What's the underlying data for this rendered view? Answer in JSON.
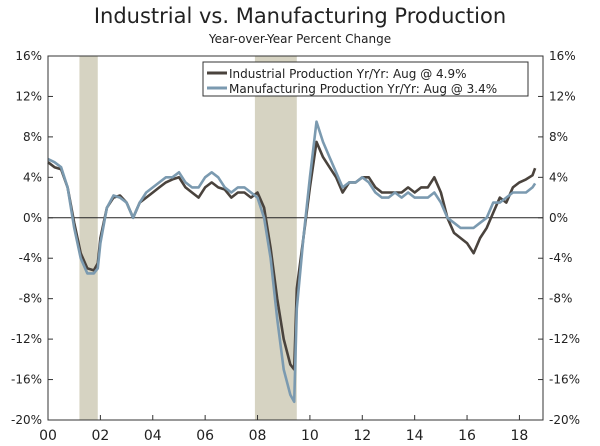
{
  "chart_data": {
    "type": "line",
    "title": "Industrial vs. Manufacturing Production",
    "subtitle": "Year-over-Year Percent Change",
    "xlabel": "",
    "ylabel": "",
    "xlim": [
      2000,
      2018.9
    ],
    "ylim": [
      -20,
      16
    ],
    "y_ticks": [
      16,
      12,
      8,
      4,
      0,
      -4,
      -8,
      -12,
      -16,
      -20
    ],
    "y_tick_labels": [
      "16%",
      "12%",
      "8%",
      "4%",
      "0%",
      "-4%",
      "-8%",
      "-12%",
      "-16%",
      "-20%"
    ],
    "x_ticks": [
      2000,
      2002,
      2004,
      2006,
      2008,
      2010,
      2012,
      2014,
      2016,
      2018
    ],
    "x_tick_labels": [
      "00",
      "02",
      "04",
      "06",
      "08",
      "10",
      "12",
      "14",
      "16",
      "18"
    ],
    "recessions": [
      [
        2001.2,
        2001.9
      ],
      [
        2007.9,
        2009.5
      ]
    ],
    "legend": {
      "placement": "top-right",
      "entries": [
        "Industrial Production Yr/Yr: Aug @ 4.9%",
        "Manufacturing Production Yr/Yr: Aug @ 3.4%"
      ]
    },
    "series": [
      {
        "name": "Industrial Production Yr/Yr: Aug @ 4.9%",
        "color": "#4a433d",
        "x": [
          2000.0,
          2000.25,
          2000.5,
          2000.75,
          2001.0,
          2001.25,
          2001.5,
          2001.75,
          2001.9,
          2002.0,
          2002.25,
          2002.5,
          2002.75,
          2003.0,
          2003.25,
          2003.5,
          2003.75,
          2004.0,
          2004.25,
          2004.5,
          2004.75,
          2005.0,
          2005.25,
          2005.5,
          2005.75,
          2006.0,
          2006.25,
          2006.5,
          2006.75,
          2007.0,
          2007.25,
          2007.5,
          2007.75,
          2008.0,
          2008.25,
          2008.5,
          2008.75,
          2009.0,
          2009.25,
          2009.4,
          2009.5,
          2009.75,
          2010.0,
          2010.25,
          2010.5,
          2010.75,
          2011.0,
          2011.25,
          2011.5,
          2011.75,
          2012.0,
          2012.25,
          2012.5,
          2012.75,
          2013.0,
          2013.25,
          2013.5,
          2013.75,
          2014.0,
          2014.25,
          2014.5,
          2014.75,
          2015.0,
          2015.25,
          2015.5,
          2015.75,
          2016.0,
          2016.25,
          2016.5,
          2016.75,
          2017.0,
          2017.25,
          2017.5,
          2017.75,
          2018.0,
          2018.25,
          2018.5,
          2018.6
        ],
        "values": [
          5.5,
          5.0,
          4.8,
          3.0,
          -0.5,
          -3.5,
          -5.0,
          -5.2,
          -4.5,
          -2.0,
          1.0,
          2.0,
          2.2,
          1.5,
          0.0,
          1.5,
          2.0,
          2.5,
          3.0,
          3.5,
          3.8,
          4.0,
          3.0,
          2.5,
          2.0,
          3.0,
          3.5,
          3.0,
          2.8,
          2.0,
          2.5,
          2.5,
          2.0,
          2.5,
          1.0,
          -3.0,
          -8.0,
          -12.0,
          -14.5,
          -15.0,
          -7.0,
          -2.0,
          3.0,
          7.5,
          6.0,
          5.0,
          4.0,
          2.5,
          3.5,
          3.5,
          4.0,
          4.0,
          3.0,
          2.5,
          2.5,
          2.5,
          2.5,
          3.0,
          2.5,
          3.0,
          3.0,
          4.0,
          2.5,
          0.0,
          -1.5,
          -2.0,
          -2.5,
          -3.5,
          -2.0,
          -1.0,
          0.5,
          2.0,
          1.5,
          3.0,
          3.5,
          3.8,
          4.2,
          4.9
        ]
      },
      {
        "name": "Manufacturing Production Yr/Yr: Aug @ 3.4%",
        "color": "#7b9ab0",
        "x": [
          2000.0,
          2000.25,
          2000.5,
          2000.75,
          2001.0,
          2001.25,
          2001.5,
          2001.75,
          2001.9,
          2002.0,
          2002.25,
          2002.5,
          2002.75,
          2003.0,
          2003.25,
          2003.5,
          2003.75,
          2004.0,
          2004.25,
          2004.5,
          2004.75,
          2005.0,
          2005.25,
          2005.5,
          2005.75,
          2006.0,
          2006.25,
          2006.5,
          2006.75,
          2007.0,
          2007.25,
          2007.5,
          2007.75,
          2008.0,
          2008.25,
          2008.5,
          2008.75,
          2009.0,
          2009.25,
          2009.4,
          2009.5,
          2009.75,
          2010.0,
          2010.25,
          2010.5,
          2010.75,
          2011.0,
          2011.25,
          2011.5,
          2011.75,
          2012.0,
          2012.25,
          2012.5,
          2012.75,
          2013.0,
          2013.25,
          2013.5,
          2013.75,
          2014.0,
          2014.25,
          2014.5,
          2014.75,
          2015.0,
          2015.25,
          2015.5,
          2015.75,
          2016.0,
          2016.25,
          2016.5,
          2016.75,
          2017.0,
          2017.25,
          2017.5,
          2017.75,
          2018.0,
          2018.25,
          2018.5,
          2018.6
        ],
        "values": [
          5.8,
          5.5,
          5.0,
          3.0,
          -1.0,
          -4.0,
          -5.5,
          -5.5,
          -5.0,
          -2.5,
          1.0,
          2.2,
          2.0,
          1.5,
          0.0,
          1.5,
          2.5,
          3.0,
          3.5,
          4.0,
          4.0,
          4.5,
          3.5,
          3.0,
          3.0,
          4.0,
          4.5,
          4.0,
          3.0,
          2.5,
          3.0,
          3.0,
          2.5,
          2.0,
          0.0,
          -4.0,
          -10.0,
          -15.0,
          -17.5,
          -18.2,
          -9.0,
          -2.0,
          4.0,
          9.5,
          7.5,
          6.0,
          4.5,
          3.0,
          3.5,
          3.5,
          4.0,
          3.5,
          2.5,
          2.0,
          2.0,
          2.5,
          2.0,
          2.5,
          2.0,
          2.0,
          2.0,
          2.5,
          1.5,
          0.0,
          -0.5,
          -1.0,
          -1.0,
          -1.0,
          -0.5,
          0.0,
          1.5,
          1.5,
          2.0,
          2.5,
          2.5,
          2.5,
          3.0,
          3.4
        ]
      }
    ]
  }
}
